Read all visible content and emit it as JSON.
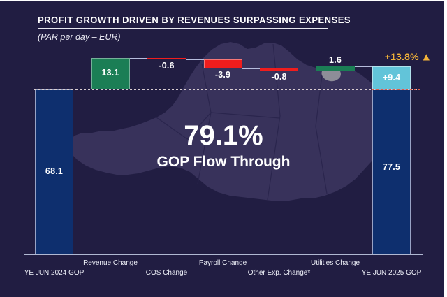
{
  "header": {
    "title": "PROFIT GROWTH DRIVEN BY REVENUES SURPASSING EXPENSES",
    "subtitle": "(PAR per day – EUR)"
  },
  "chart_data": {
    "type": "bar",
    "subtype": "waterfall",
    "title": "PROFIT GROWTH DRIVEN BY REVENUES SURPASSING EXPENSES",
    "unit": "PAR per day – EUR",
    "categories": [
      "YE JUN 2024 GOP",
      "Revenue Change",
      "COS Change",
      "Payroll Change",
      "Other Exp. Change*",
      "Utilities Change",
      "YE JUN 2025 GOP"
    ],
    "values": [
      68.1,
      13.1,
      -0.6,
      -3.9,
      -0.8,
      1.6,
      77.5
    ],
    "reference_level": 68.1,
    "baseline": 0,
    "grid": false,
    "legend": false,
    "columns": [
      {
        "label": "YE JUN 2024 GOP",
        "kind": "total",
        "value": 68.1,
        "display": "68.1",
        "label_row": 2
      },
      {
        "label": "Revenue Change",
        "kind": "delta",
        "value": 13.1,
        "display": "13.1",
        "label_row": 1
      },
      {
        "label": "COS Change",
        "kind": "delta",
        "value": -0.6,
        "display": "-0.6",
        "label_row": 2
      },
      {
        "label": "Payroll Change",
        "kind": "delta",
        "value": -3.9,
        "display": "-3.9",
        "label_row": 1
      },
      {
        "label": "Other Exp. Change*",
        "kind": "delta",
        "value": -0.8,
        "display": "-0.8",
        "label_row": 2
      },
      {
        "label": "Utilities Change",
        "kind": "delta",
        "value": 1.6,
        "display": "1.6",
        "label_row": 1
      },
      {
        "label": "YE JUN 2025 GOP",
        "kind": "total",
        "value": 77.5,
        "display": "77.5",
        "increment_value": 9.4,
        "increment_display": "+9.4",
        "label_row": 2
      }
    ],
    "annotations": {
      "growth_pct": "+13.8%",
      "growth_icon": "▲",
      "flow_through_value": "79.1%",
      "flow_through_label": "GOP Flow Through"
    }
  },
  "colors": {
    "background": "#211d42",
    "map_fill": "#38325b",
    "map_border": "#29244c",
    "map_highlight": "#8d8d98",
    "total_bar": "#0e2f6e",
    "total_bar_border": "#99a3c5",
    "positive_bar": "#1b7e55",
    "negative_bar": "#f01d1d",
    "increment_bar": "#62c4d9",
    "gold": "#f2b238",
    "connector": "#b6bcdc",
    "dotted_line": "#d8cdd1",
    "dotted_line_red": "#dd5f49",
    "axis_line": "#b0b8d2",
    "text": "#ffffff"
  }
}
